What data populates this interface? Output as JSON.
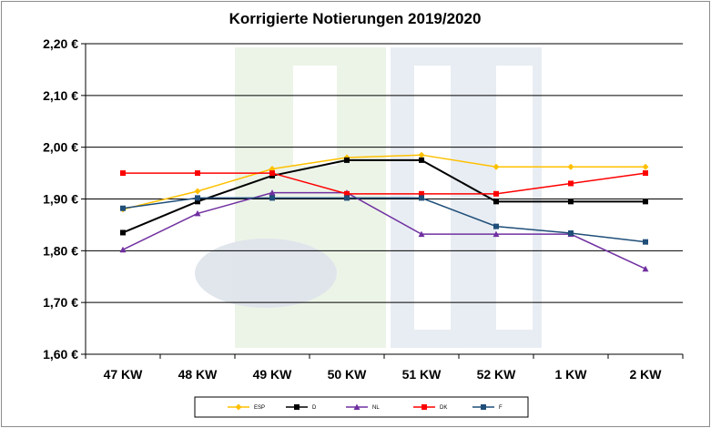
{
  "chart_data": {
    "type": "line",
    "title": "Korrigierte Notierungen 2019/2020",
    "xlabel": "",
    "ylabel": "",
    "categories": [
      "47 KW",
      "48 KW",
      "49 KW",
      "50 KW",
      "51 KW",
      "52 KW",
      "1 KW",
      "2 KW"
    ],
    "yticks": [
      "1,60 €",
      "1,70 €",
      "1,80 €",
      "1,90 €",
      "2,00 €",
      "2,10 €",
      "2,20 €"
    ],
    "ylim": [
      1.6,
      2.2
    ],
    "grid": true,
    "legend_position": "bottom",
    "series": [
      {
        "name": "ESP",
        "color": "#ffc000",
        "marker": "diamond",
        "values": [
          1.88,
          1.915,
          1.958,
          1.98,
          1.985,
          1.962,
          1.962,
          1.962
        ]
      },
      {
        "name": "D",
        "color": "#000000",
        "marker": "square",
        "values": [
          1.835,
          1.895,
          1.945,
          1.975,
          1.975,
          1.895,
          1.895,
          1.895
        ]
      },
      {
        "name": "NL",
        "color": "#7030a0",
        "marker": "triangle",
        "values": [
          1.802,
          1.872,
          1.912,
          1.912,
          1.832,
          1.832,
          1.832,
          1.765
        ]
      },
      {
        "name": "DK",
        "color": "#ff0000",
        "marker": "square",
        "values": [
          1.95,
          1.95,
          1.95,
          1.91,
          1.91,
          1.91,
          1.93,
          1.95
        ]
      },
      {
        "name": "F",
        "color": "#1f4e79",
        "marker": "square",
        "values": [
          1.882,
          1.902,
          1.902,
          1.902,
          1.902,
          1.847,
          1.834,
          1.817
        ]
      }
    ]
  }
}
